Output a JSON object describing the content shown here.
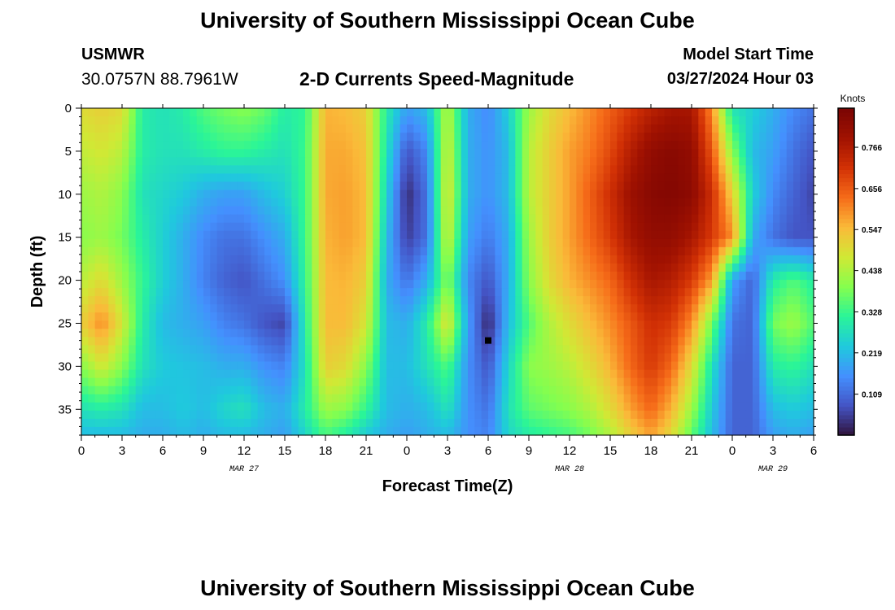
{
  "header": {
    "title": "University of Southern Mississippi Ocean Cube",
    "station": "USMWR",
    "coords": "30.0757N  88.7961W",
    "product": "2-D Currents Speed-Magnitude",
    "start_label": "Model Start Time",
    "start_value": "03/27/2024 Hour 03"
  },
  "footer": {
    "title": "University of Southern Mississippi Ocean Cube"
  },
  "chart_data": {
    "type": "heatmap",
    "title": "2-D Currents Speed-Magnitude",
    "xlabel": "Forecast Time(Z)",
    "ylabel": "Depth (ft)",
    "x_unit": "hours since 03/27 00Z",
    "xlim": [
      0,
      54
    ],
    "ylim": [
      0,
      38
    ],
    "y_inverted": true,
    "x_ticks": [
      {
        "value": 0,
        "label": "0"
      },
      {
        "value": 3,
        "label": "3"
      },
      {
        "value": 6,
        "label": "6"
      },
      {
        "value": 9,
        "label": "9"
      },
      {
        "value": 12,
        "label": "12"
      },
      {
        "value": 15,
        "label": "15"
      },
      {
        "value": 18,
        "label": "18"
      },
      {
        "value": 21,
        "label": "21"
      },
      {
        "value": 24,
        "label": "0"
      },
      {
        "value": 27,
        "label": "3"
      },
      {
        "value": 30,
        "label": "6"
      },
      {
        "value": 33,
        "label": "9"
      },
      {
        "value": 36,
        "label": "12"
      },
      {
        "value": 39,
        "label": "15"
      },
      {
        "value": 42,
        "label": "18"
      },
      {
        "value": 45,
        "label": "21"
      },
      {
        "value": 48,
        "label": "0"
      },
      {
        "value": 51,
        "label": "3"
      },
      {
        "value": 54,
        "label": "6"
      }
    ],
    "date_labels": [
      {
        "value": 12,
        "label": "MAR 27"
      },
      {
        "value": 36,
        "label": "MAR 28"
      },
      {
        "value": 51,
        "label": "MAR 29"
      }
    ],
    "y_ticks": [
      0,
      5,
      10,
      15,
      20,
      25,
      30,
      35
    ],
    "colorbar": {
      "label": "Knots",
      "min": 0.0,
      "max": 0.87,
      "ticks": [
        0.109,
        0.219,
        0.328,
        0.438,
        0.547,
        0.656,
        0.766
      ]
    },
    "colors": [
      "#30123b",
      "#4454c4",
      "#4490fe",
      "#1fc9dd",
      "#2af598",
      "#85fe4e",
      "#d0e935",
      "#faba39",
      "#f66c19",
      "#d23105",
      "#a11201",
      "#7a0403"
    ],
    "marker": {
      "x": 30,
      "y": 27
    },
    "speed_field_knots": {
      "x_hours": [
        0,
        1.5,
        3,
        4.5,
        6,
        7.5,
        9,
        10.5,
        12,
        13.5,
        15,
        16.5,
        18,
        19.5,
        21,
        22.5,
        24,
        25.5,
        27,
        28.5,
        30,
        31.5,
        33,
        34.5,
        36,
        37.5,
        39,
        40.5,
        42,
        43.5,
        45,
        46.5,
        48,
        49.5,
        51,
        52.5,
        54
      ],
      "depths_ft": [
        0,
        5,
        10,
        15,
        20,
        25,
        30,
        35,
        38
      ],
      "rows": [
        [
          0.5,
          0.52,
          0.5,
          0.3,
          0.28,
          0.3,
          0.35,
          0.38,
          0.4,
          0.37,
          0.3,
          0.32,
          0.56,
          0.55,
          0.52,
          0.3,
          0.18,
          0.22,
          0.45,
          0.2,
          0.15,
          0.25,
          0.42,
          0.5,
          0.55,
          0.6,
          0.65,
          0.7,
          0.75,
          0.78,
          0.78,
          0.6,
          0.28,
          0.25,
          0.2,
          0.15,
          0.12
        ],
        [
          0.46,
          0.48,
          0.45,
          0.3,
          0.28,
          0.28,
          0.3,
          0.32,
          0.32,
          0.3,
          0.28,
          0.33,
          0.57,
          0.57,
          0.54,
          0.28,
          0.08,
          0.15,
          0.48,
          0.2,
          0.16,
          0.22,
          0.45,
          0.52,
          0.58,
          0.62,
          0.68,
          0.76,
          0.82,
          0.84,
          0.82,
          0.66,
          0.4,
          0.22,
          0.18,
          0.12,
          0.08
        ],
        [
          0.42,
          0.44,
          0.4,
          0.28,
          0.26,
          0.24,
          0.2,
          0.18,
          0.18,
          0.22,
          0.25,
          0.33,
          0.57,
          0.58,
          0.55,
          0.25,
          0.03,
          0.12,
          0.5,
          0.2,
          0.16,
          0.22,
          0.45,
          0.52,
          0.58,
          0.65,
          0.72,
          0.8,
          0.84,
          0.85,
          0.83,
          0.72,
          0.52,
          0.25,
          0.15,
          0.1,
          0.06
        ],
        [
          0.4,
          0.42,
          0.38,
          0.3,
          0.25,
          0.2,
          0.15,
          0.12,
          0.12,
          0.16,
          0.2,
          0.33,
          0.56,
          0.58,
          0.55,
          0.22,
          0.05,
          0.12,
          0.48,
          0.18,
          0.13,
          0.2,
          0.42,
          0.52,
          0.58,
          0.64,
          0.7,
          0.78,
          0.82,
          0.82,
          0.78,
          0.7,
          0.6,
          0.2,
          0.12,
          0.08,
          0.08
        ],
        [
          0.45,
          0.5,
          0.42,
          0.32,
          0.25,
          0.2,
          0.14,
          0.1,
          0.08,
          0.12,
          0.16,
          0.32,
          0.55,
          0.56,
          0.52,
          0.2,
          0.12,
          0.2,
          0.4,
          0.15,
          0.08,
          0.2,
          0.4,
          0.5,
          0.56,
          0.6,
          0.64,
          0.72,
          0.78,
          0.76,
          0.7,
          0.58,
          0.18,
          0.1,
          0.3,
          0.35,
          0.3
        ],
        [
          0.52,
          0.6,
          0.48,
          0.3,
          0.22,
          0.2,
          0.18,
          0.14,
          0.12,
          0.08,
          0.06,
          0.3,
          0.55,
          0.55,
          0.48,
          0.22,
          0.2,
          0.3,
          0.5,
          0.18,
          0.02,
          0.22,
          0.35,
          0.44,
          0.5,
          0.55,
          0.6,
          0.66,
          0.72,
          0.7,
          0.6,
          0.38,
          0.12,
          0.1,
          0.38,
          0.42,
          0.35
        ],
        [
          0.4,
          0.48,
          0.4,
          0.28,
          0.24,
          0.23,
          0.22,
          0.2,
          0.2,
          0.16,
          0.14,
          0.28,
          0.52,
          0.5,
          0.4,
          0.22,
          0.22,
          0.28,
          0.35,
          0.16,
          0.08,
          0.26,
          0.4,
          0.42,
          0.45,
          0.5,
          0.56,
          0.64,
          0.7,
          0.64,
          0.5,
          0.28,
          0.1,
          0.1,
          0.3,
          0.32,
          0.28
        ],
        [
          0.28,
          0.3,
          0.28,
          0.22,
          0.22,
          0.24,
          0.22,
          0.26,
          0.28,
          0.22,
          0.2,
          0.3,
          0.42,
          0.4,
          0.32,
          0.22,
          0.2,
          0.22,
          0.28,
          0.16,
          0.12,
          0.28,
          0.36,
          0.38,
          0.4,
          0.44,
          0.5,
          0.58,
          0.64,
          0.56,
          0.42,
          0.24,
          0.1,
          0.1,
          0.22,
          0.24,
          0.22
        ],
        [
          0.22,
          0.22,
          0.22,
          0.2,
          0.2,
          0.22,
          0.2,
          0.22,
          0.22,
          0.2,
          0.18,
          0.26,
          0.34,
          0.3,
          0.24,
          0.2,
          0.18,
          0.2,
          0.22,
          0.16,
          0.14,
          0.26,
          0.3,
          0.32,
          0.34,
          0.38,
          0.44,
          0.52,
          0.58,
          0.5,
          0.36,
          0.22,
          0.1,
          0.1,
          0.18,
          0.2,
          0.18
        ]
      ]
    }
  }
}
